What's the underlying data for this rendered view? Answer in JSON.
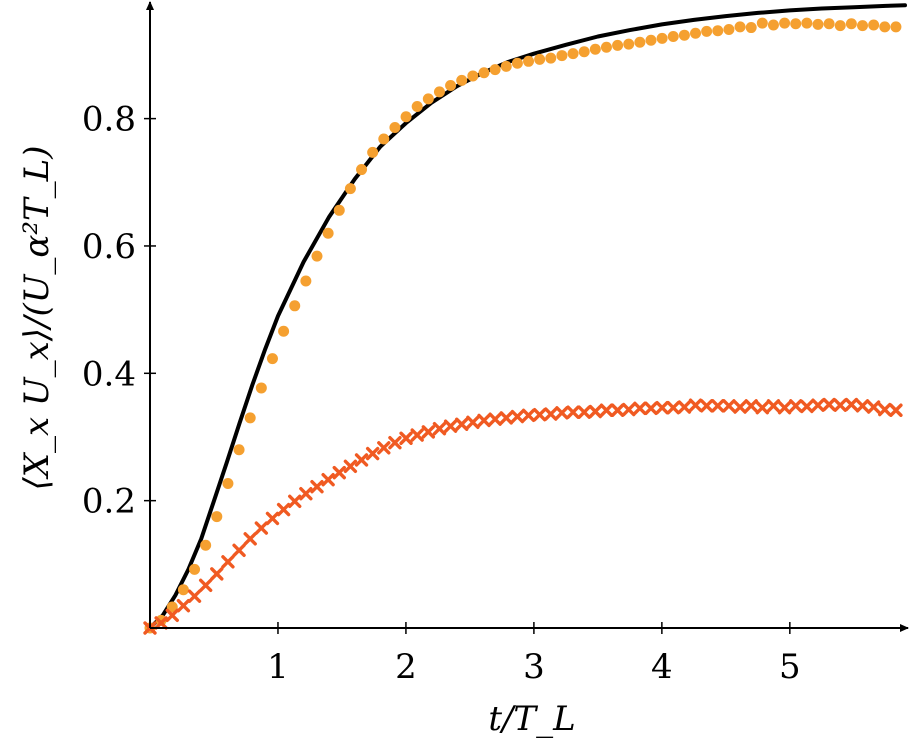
{
  "chart_data": {
    "type": "line",
    "xlabel": "t/T_L",
    "ylabel": "⟨X_x U_x⟩/(U_α²T_L)",
    "xlim": [
      0,
      5.9
    ],
    "ylim": [
      0,
      0.98
    ],
    "x_ticks": [
      "1",
      "2",
      "3",
      "4",
      "5"
    ],
    "y_ticks": [
      "0.2",
      "0.4",
      "0.6",
      "0.8"
    ],
    "x_tick_values": [
      1,
      2,
      3,
      4,
      5
    ],
    "y_tick_values": [
      0.2,
      0.4,
      0.6,
      0.8
    ],
    "grid": false,
    "series": [
      {
        "style": "line",
        "color": "#000000",
        "x": [
          0,
          0.1,
          0.2,
          0.3,
          0.4,
          0.5,
          0.6,
          0.7,
          0.8,
          0.9,
          1.0,
          1.2,
          1.4,
          1.6,
          1.8,
          2.0,
          2.2,
          2.4,
          2.6,
          2.8,
          3.0,
          3.25,
          3.5,
          3.75,
          4.0,
          4.25,
          4.5,
          4.75,
          5.0,
          5.25,
          5.5,
          5.75,
          5.9
        ],
        "values": [
          0,
          0.02,
          0.052,
          0.092,
          0.14,
          0.2,
          0.26,
          0.322,
          0.382,
          0.438,
          0.49,
          0.575,
          0.646,
          0.705,
          0.756,
          0.793,
          0.825,
          0.851,
          0.872,
          0.889,
          0.902,
          0.916,
          0.929,
          0.939,
          0.948,
          0.955,
          0.961,
          0.966,
          0.97,
          0.973,
          0.975,
          0.977,
          0.978
        ]
      },
      {
        "style": "circle",
        "color": "#f5a030",
        "x": [
          0,
          0.087,
          0.174,
          0.261,
          0.348,
          0.435,
          0.522,
          0.609,
          0.696,
          0.783,
          0.87,
          0.957,
          1.044,
          1.131,
          1.218,
          1.305,
          1.392,
          1.479,
          1.566,
          1.653,
          1.74,
          1.827,
          1.914,
          2.001,
          2.088,
          2.175,
          2.262,
          2.349,
          2.436,
          2.523,
          2.61,
          2.697,
          2.784,
          2.871,
          2.958,
          3.045,
          3.132,
          3.219,
          3.306,
          3.393,
          3.48,
          3.567,
          3.654,
          3.741,
          3.828,
          3.915,
          4.002,
          4.089,
          4.176,
          4.263,
          4.35,
          4.437,
          4.524,
          4.611,
          4.698,
          4.785,
          4.872,
          4.959,
          5.046,
          5.133,
          5.22,
          5.307,
          5.394,
          5.481,
          5.568,
          5.655,
          5.742,
          5.829
        ],
        "values": [
          0,
          0.012,
          0.033,
          0.06,
          0.092,
          0.13,
          0.175,
          0.227,
          0.28,
          0.33,
          0.377,
          0.423,
          0.466,
          0.506,
          0.545,
          0.584,
          0.62,
          0.656,
          0.69,
          0.72,
          0.747,
          0.768,
          0.786,
          0.803,
          0.819,
          0.831,
          0.842,
          0.852,
          0.86,
          0.867,
          0.872,
          0.877,
          0.882,
          0.887,
          0.89,
          0.893,
          0.895,
          0.899,
          0.902,
          0.905,
          0.909,
          0.912,
          0.915,
          0.917,
          0.92,
          0.923,
          0.926,
          0.929,
          0.931,
          0.934,
          0.937,
          0.938,
          0.94,
          0.944,
          0.943,
          0.95,
          0.947,
          0.95,
          0.949,
          0.95,
          0.948,
          0.949,
          0.946,
          0.949,
          0.946,
          0.947,
          0.944,
          0.944
        ]
      },
      {
        "style": "cross",
        "color": "#f05a22",
        "x": [
          0,
          0.087,
          0.174,
          0.261,
          0.348,
          0.435,
          0.522,
          0.609,
          0.696,
          0.783,
          0.87,
          0.957,
          1.044,
          1.131,
          1.218,
          1.305,
          1.392,
          1.479,
          1.566,
          1.653,
          1.74,
          1.827,
          1.914,
          2.001,
          2.088,
          2.175,
          2.262,
          2.349,
          2.436,
          2.523,
          2.61,
          2.697,
          2.784,
          2.871,
          2.958,
          3.045,
          3.132,
          3.219,
          3.306,
          3.393,
          3.48,
          3.567,
          3.654,
          3.741,
          3.828,
          3.915,
          4.002,
          4.089,
          4.176,
          4.263,
          4.35,
          4.437,
          4.524,
          4.611,
          4.698,
          4.785,
          4.872,
          4.959,
          5.046,
          5.133,
          5.22,
          5.307,
          5.394,
          5.481,
          5.568,
          5.655,
          5.742,
          5.829
        ],
        "values": [
          0,
          0.008,
          0.02,
          0.035,
          0.05,
          0.067,
          0.085,
          0.104,
          0.122,
          0.14,
          0.157,
          0.172,
          0.186,
          0.199,
          0.211,
          0.222,
          0.233,
          0.244,
          0.254,
          0.264,
          0.274,
          0.283,
          0.291,
          0.298,
          0.303,
          0.308,
          0.313,
          0.317,
          0.32,
          0.323,
          0.326,
          0.328,
          0.33,
          0.332,
          0.334,
          0.335,
          0.336,
          0.338,
          0.339,
          0.339,
          0.34,
          0.342,
          0.342,
          0.343,
          0.345,
          0.345,
          0.346,
          0.346,
          0.347,
          0.35,
          0.349,
          0.349,
          0.349,
          0.347,
          0.349,
          0.346,
          0.349,
          0.346,
          0.349,
          0.348,
          0.35,
          0.351,
          0.35,
          0.351,
          0.349,
          0.347,
          0.343,
          0.342
        ]
      }
    ]
  }
}
